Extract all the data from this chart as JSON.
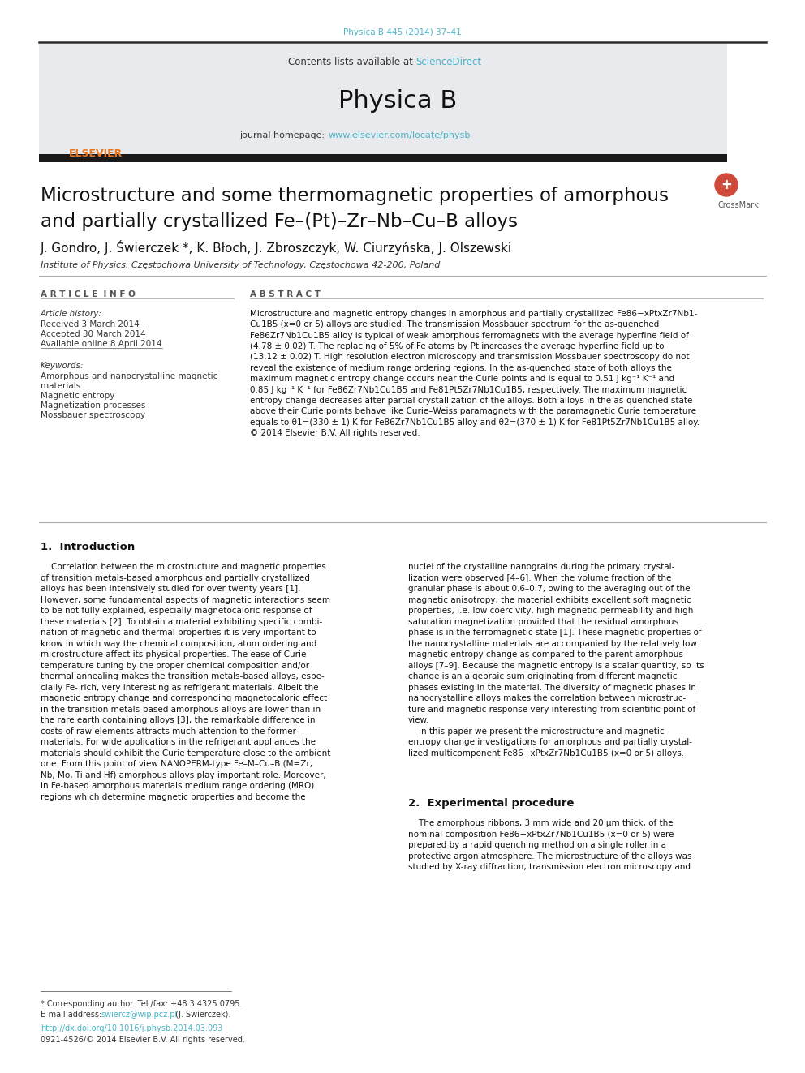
{
  "page_bg": "#ffffff",
  "top_journal_line": "Physica B 445 (2014) 37–41",
  "top_journal_color": "#4ab3c8",
  "header_bg": "#e8eaed",
  "link_color": "#4ab3c8",
  "text_color": "#111111",
  "gray_text": "#333333",
  "elsevier_orange": "#e87722",
  "title_line1": "Microstructure and some thermomagnetic properties of amorphous",
  "title_line2": "and partially crystallized Fe–(Pt)–Zr–Nb–Cu–B alloys",
  "authors": "J. Gondro, J. Świerczek *, K. Błoch, J. Zbroszczyk, W. Ciurzyńska, J. Olszewski",
  "affiliation": "Institute of Physics, Częstochowa University of Technology, Częstochowa 42-200, Poland",
  "article_info_header": "A R T I C L E  I N F O",
  "abstract_header": "A B S T R A C T",
  "article_history_label": "Article history:",
  "received": "Received 3 March 2014",
  "accepted": "Accepted 30 March 2014",
  "available": "Available online 8 April 2014",
  "keywords_label": "Keywords:",
  "keyword1": "Amorphous and nanocrystalline magnetic",
  "keyword1b": "materials",
  "keyword2": "Magnetic entropy",
  "keyword3": "Magnetization processes",
  "keyword4": "Mossbauer spectroscopy",
  "section1_header": "1.  Introduction",
  "section2_header": "2.  Experimental procedure",
  "footnote_star": "* Corresponding author. Tel./fax: +48 3 4325 0795.",
  "footnote_email_label": "E-mail address: ",
  "footnote_email_link": "swiercz@wip.pcz.pl",
  "footnote_email_rest": " (J. Swierczek).",
  "footnote_doi": "http://dx.doi.org/10.1016/j.physb.2014.03.093",
  "footnote_issn": "0921-4526/© 2014 Elsevier B.V. All rights reserved.",
  "crossmark_text": "CrossMark"
}
